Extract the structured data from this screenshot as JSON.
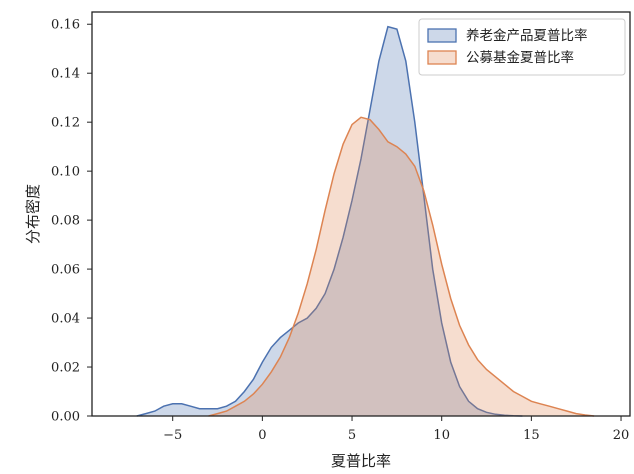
{
  "chart_data": {
    "type": "area",
    "xlabel": "夏普比率",
    "ylabel": "分布密度",
    "xlim": [
      -9.5,
      20.5
    ],
    "ylim": [
      0,
      0.165
    ],
    "x_ticks": [
      -5,
      0,
      5,
      10,
      15,
      20
    ],
    "y_ticks": [
      0.0,
      0.02,
      0.04,
      0.06,
      0.08,
      0.1,
      0.12,
      0.14,
      0.16
    ],
    "grid": false,
    "legend_position": "top-right",
    "series": [
      {
        "name": "养老金产品夏普比率",
        "color": "#4c72b0",
        "points": [
          [
            -7,
            0.0
          ],
          [
            -6.5,
            0.001
          ],
          [
            -6,
            0.002
          ],
          [
            -5.5,
            0.004
          ],
          [
            -5,
            0.005
          ],
          [
            -4.5,
            0.005
          ],
          [
            -4,
            0.004
          ],
          [
            -3.5,
            0.003
          ],
          [
            -3,
            0.003
          ],
          [
            -2.5,
            0.003
          ],
          [
            -2,
            0.004
          ],
          [
            -1.5,
            0.006
          ],
          [
            -1,
            0.01
          ],
          [
            -0.5,
            0.015
          ],
          [
            0,
            0.022
          ],
          [
            0.5,
            0.028
          ],
          [
            1,
            0.032
          ],
          [
            1.5,
            0.035
          ],
          [
            2,
            0.038
          ],
          [
            2.5,
            0.04
          ],
          [
            3,
            0.044
          ],
          [
            3.5,
            0.05
          ],
          [
            4,
            0.06
          ],
          [
            4.5,
            0.073
          ],
          [
            5,
            0.088
          ],
          [
            5.5,
            0.105
          ],
          [
            6,
            0.125
          ],
          [
            6.5,
            0.145
          ],
          [
            7,
            0.159
          ],
          [
            7.5,
            0.158
          ],
          [
            8,
            0.145
          ],
          [
            8.5,
            0.12
          ],
          [
            9,
            0.09
          ],
          [
            9.5,
            0.06
          ],
          [
            10,
            0.038
          ],
          [
            10.5,
            0.022
          ],
          [
            11,
            0.012
          ],
          [
            11.5,
            0.006
          ],
          [
            12,
            0.003
          ],
          [
            12.5,
            0.0015
          ],
          [
            13,
            0.0007
          ],
          [
            13.5,
            0.0003
          ],
          [
            14,
            0.0001
          ],
          [
            14.5,
            0.0
          ]
        ]
      },
      {
        "name": "公募基金夏普比率",
        "color": "#dd8452",
        "points": [
          [
            -3,
            0.0
          ],
          [
            -2.5,
            0.001
          ],
          [
            -2,
            0.002
          ],
          [
            -1.5,
            0.004
          ],
          [
            -1,
            0.006
          ],
          [
            -0.5,
            0.009
          ],
          [
            0,
            0.013
          ],
          [
            0.5,
            0.018
          ],
          [
            1,
            0.024
          ],
          [
            1.5,
            0.032
          ],
          [
            2,
            0.042
          ],
          [
            2.5,
            0.054
          ],
          [
            3,
            0.068
          ],
          [
            3.5,
            0.084
          ],
          [
            4,
            0.099
          ],
          [
            4.5,
            0.111
          ],
          [
            5,
            0.119
          ],
          [
            5.5,
            0.122
          ],
          [
            6,
            0.121
          ],
          [
            6.5,
            0.117
          ],
          [
            7,
            0.112
          ],
          [
            7.5,
            0.11
          ],
          [
            8,
            0.107
          ],
          [
            8.5,
            0.102
          ],
          [
            9,
            0.092
          ],
          [
            9.5,
            0.078
          ],
          [
            10,
            0.062
          ],
          [
            10.5,
            0.048
          ],
          [
            11,
            0.037
          ],
          [
            11.5,
            0.029
          ],
          [
            12,
            0.023
          ],
          [
            12.5,
            0.019
          ],
          [
            13,
            0.016
          ],
          [
            13.5,
            0.013
          ],
          [
            14,
            0.01
          ],
          [
            14.5,
            0.008
          ],
          [
            15,
            0.006
          ],
          [
            15.5,
            0.005
          ],
          [
            16,
            0.004
          ],
          [
            16.5,
            0.003
          ],
          [
            17,
            0.002
          ],
          [
            17.5,
            0.001
          ],
          [
            18,
            0.0004
          ],
          [
            18.5,
            0.0
          ]
        ]
      }
    ]
  }
}
